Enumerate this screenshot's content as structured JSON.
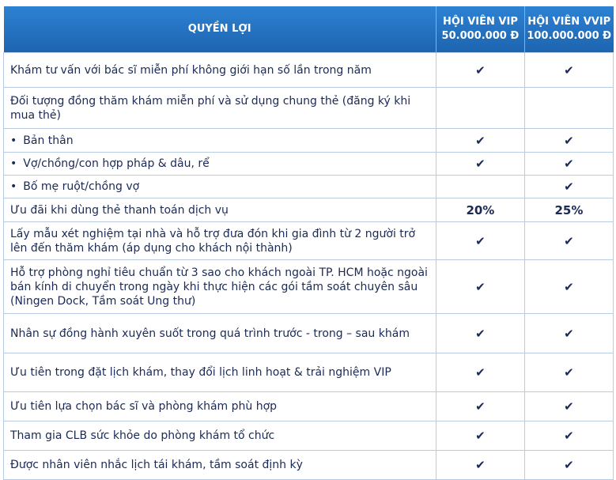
{
  "header": {
    "benefit": "QUYỀN LỢI",
    "vip": [
      "HỘI VIÊN VIP",
      "50.000.000 Đ"
    ],
    "vvip": [
      "HỘI VIÊN VVIP",
      "100.000.000 Đ"
    ]
  },
  "rows": [
    {
      "text": "Khám tư vấn với bác sĩ miễn phí không giới hạn số lần trong năm",
      "vip": "✔",
      "vvip": "✔",
      "h": 44
    },
    {
      "text": "Đối tượng đồng thăm khám miễn phí và sử dụng chung thẻ (đăng ký khi mua thẻ)",
      "vip": "",
      "vvip": "",
      "h": 52
    },
    {
      "text": "Bản thân",
      "bullet": true,
      "vip": "✔",
      "vvip": "✔",
      "h": 30
    },
    {
      "text": "Vợ/chồng/con hợp pháp & dâu, rể",
      "bullet": true,
      "vip": "✔",
      "vvip": "✔",
      "h": 29
    },
    {
      "text": "Bố mẹ ruột/chồng vợ",
      "bullet": true,
      "vip": "",
      "vvip": "✔",
      "h": 29
    },
    {
      "text": "Ưu đãi khi dùng thẻ thanh toán dịch vụ",
      "vip": "20%",
      "vvip": "25%",
      "h": 30
    },
    {
      "text": "Lấy mẫu xét nghiệm tại nhà và hỗ trợ đưa đón khi gia đình từ 2 người trở lên đến thăm khám (áp dụng cho khách nội thành)",
      "vip": "✔",
      "vvip": "✔",
      "h": 48
    },
    {
      "text": "Hỗ trợ phòng nghỉ tiêu chuẩn từ 3 sao cho khách ngoài TP. HCM hoặc ngoài bán kính di chuyển trong ngày khi thực hiện các gói tầm soát chuyên sâu (Ningen Dock, Tầm soát Ung thư)",
      "vip": "✔",
      "vvip": "✔",
      "h": 68
    },
    {
      "text": "Nhân sự đồng hành xuyên suốt trong quá trình trước - trong – sau khám",
      "vip": "✔",
      "vvip": "✔",
      "h": 50
    },
    {
      "text": "Ưu tiên trong đặt lịch khám, thay đổi lịch linh hoạt & trải nghiệm VIP",
      "vip": "✔",
      "vvip": "✔",
      "h": 49
    },
    {
      "text": "Ưu tiên lựa chọn bác sĩ và phòng khám phù hợp",
      "vip": "✔",
      "vvip": "✔",
      "h": 37
    },
    {
      "text": "Tham gia CLB sức khỏe do phòng khám tổ chức",
      "vip": "✔",
      "vvip": "✔",
      "h": 37
    },
    {
      "text": "Được nhân viên nhắc lịch tái khám, tầm soát định kỳ",
      "vip": "✔",
      "vvip": "✔",
      "h": 37
    }
  ]
}
